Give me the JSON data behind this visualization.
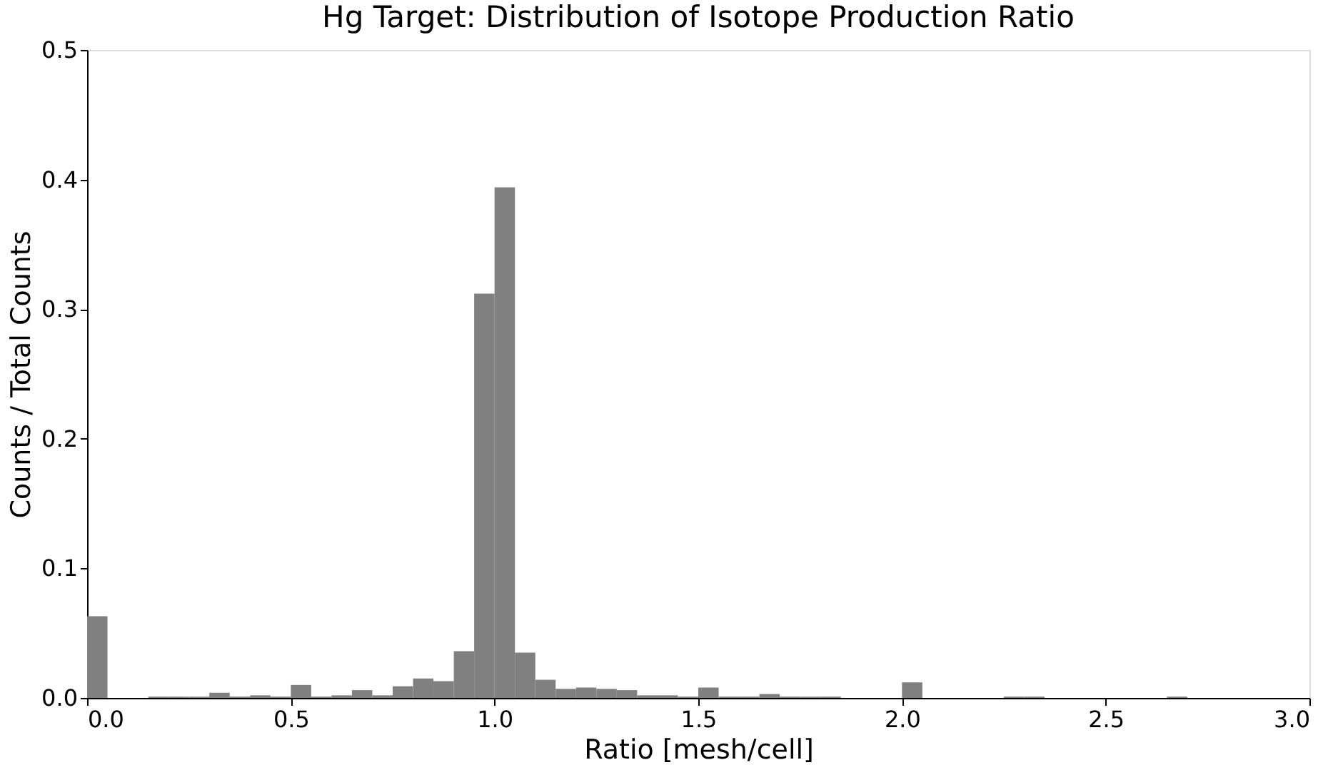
{
  "chart_data": {
    "type": "histogram",
    "title": "Hg Target: Distribution of Isotope Production Ratio",
    "xlabel": "Ratio [mesh/cell]",
    "ylabel": "Counts / Total Counts",
    "bins": [
      0.0,
      0.05,
      0.1,
      0.15,
      0.2,
      0.25,
      0.3,
      0.35,
      0.4,
      0.45,
      0.5,
      0.55,
      0.6,
      0.65,
      0.7,
      0.75,
      0.8,
      0.85,
      0.9,
      0.95,
      1.0,
      1.05,
      1.1,
      1.15,
      1.2,
      1.25,
      1.3,
      1.35,
      1.4,
      1.45,
      1.5,
      1.55,
      1.6,
      1.65,
      1.7,
      1.75,
      1.8,
      1.85,
      1.9,
      1.95,
      2.0,
      2.05,
      2.1,
      2.15,
      2.2,
      2.25,
      2.3,
      2.35,
      2.4,
      2.45,
      2.5,
      2.55,
      2.6,
      2.65,
      2.7,
      2.75,
      2.8,
      2.85,
      2.9,
      2.95,
      3.0
    ],
    "values": [
      0.063,
      0.0,
      0.0,
      0.001,
      0.001,
      0.001,
      0.004,
      0.001,
      0.002,
      0.001,
      0.01,
      0.001,
      0.002,
      0.006,
      0.002,
      0.009,
      0.015,
      0.013,
      0.036,
      0.312,
      0.394,
      0.035,
      0.014,
      0.007,
      0.008,
      0.007,
      0.006,
      0.002,
      0.002,
      0.001,
      0.008,
      0.001,
      0.001,
      0.003,
      0.001,
      0.001,
      0.001,
      0.0,
      0.0,
      0.0,
      0.012,
      0.0,
      0.0,
      0.0,
      0.0,
      0.001,
      0.001,
      0.0,
      0.0,
      0.0,
      0.0,
      0.0,
      0.0,
      0.001,
      0.0,
      0.0,
      0.0,
      0.0,
      0.0,
      0.0
    ],
    "color": "#808080",
    "xlim": [
      0.0,
      3.0
    ],
    "ylim": [
      0.0,
      0.5
    ],
    "xticks": [
      {
        "value": 0,
        "label": "0.0"
      },
      0.5,
      {
        "value": 1,
        "label": "1.0"
      },
      1.5,
      {
        "value": 2,
        "label": "2.0"
      },
      2.5,
      {
        "value": 3,
        "label": "3.0"
      }
    ],
    "yticks": [
      {
        "value": 0,
        "label": "0.0"
      },
      0.1,
      0.2,
      0.3,
      0.4,
      0.5
    ],
    "grid": false
  }
}
